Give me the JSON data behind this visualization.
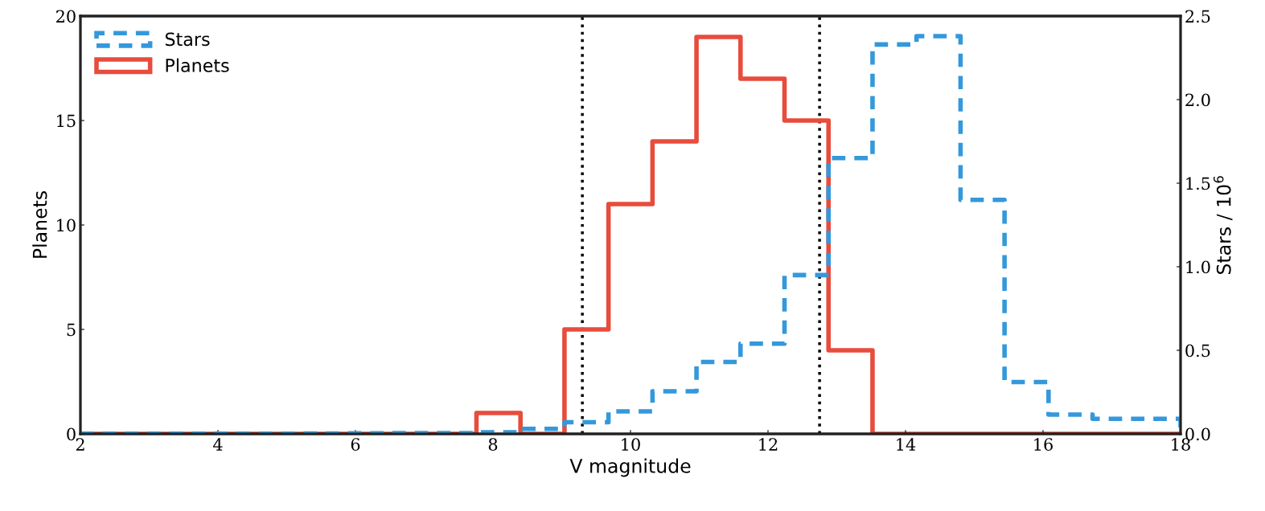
{
  "chart_data": {
    "type": "histogram",
    "xlabel": "V magnitude",
    "ylabel": "Planets",
    "y2label": "Stars / 10$^{6}$",
    "bins": [
      2.0,
      2.64,
      3.28,
      3.92,
      4.56,
      5.2,
      5.84,
      6.48,
      7.12,
      7.76,
      8.4,
      9.04,
      9.68,
      10.32,
      10.96,
      11.6,
      12.24,
      12.88,
      13.52,
      14.16,
      14.8,
      15.44,
      16.08,
      16.72,
      17.36,
      18.0
    ],
    "series": [
      {
        "name": "Stars",
        "color": "#3498db",
        "axis": "y2",
        "line_style": "dashed",
        "values": [
          0.001,
          0.001,
          0.001,
          0.001,
          0.001,
          0.002,
          0.003,
          0.005,
          0.005,
          0.01,
          0.03,
          0.07,
          0.135,
          0.255,
          0.43,
          0.54,
          0.95,
          1.65,
          2.33,
          2.38,
          1.4,
          0.31,
          0.115,
          0.09,
          0.09
        ]
      },
      {
        "name": "Planets",
        "color": "#e74c3c",
        "line_style": "solid",
        "values": [
          0,
          0,
          0,
          0,
          0,
          0,
          0,
          0,
          0,
          1,
          0,
          5,
          11,
          14,
          19,
          17,
          15,
          4,
          0,
          0,
          0,
          0,
          0,
          0,
          0
        ]
      }
    ],
    "xlim": [
      2,
      18
    ],
    "xticks": [
      2,
      4,
      6,
      8,
      10,
      12,
      14,
      16,
      18
    ],
    "ylim": [
      0,
      20
    ],
    "yticks": [
      0,
      5,
      10,
      15,
      20
    ],
    "y2lim": [
      0,
      2.5
    ],
    "y2ticks": [
      {
        "value": 0,
        "label": "0.0"
      },
      0.5,
      {
        "value": 1,
        "label": "1.0"
      },
      1.5,
      {
        "value": 2,
        "label": "2.0"
      },
      2.5
    ],
    "ref_lines": [
      {
        "axis": "x",
        "value": 9.3,
        "color": "#000000",
        "line_style": "dotted"
      },
      {
        "axis": "x",
        "value": 12.75,
        "color": "#000000",
        "line_style": "dotted"
      }
    ],
    "legend": "top left",
    "grid": false
  }
}
